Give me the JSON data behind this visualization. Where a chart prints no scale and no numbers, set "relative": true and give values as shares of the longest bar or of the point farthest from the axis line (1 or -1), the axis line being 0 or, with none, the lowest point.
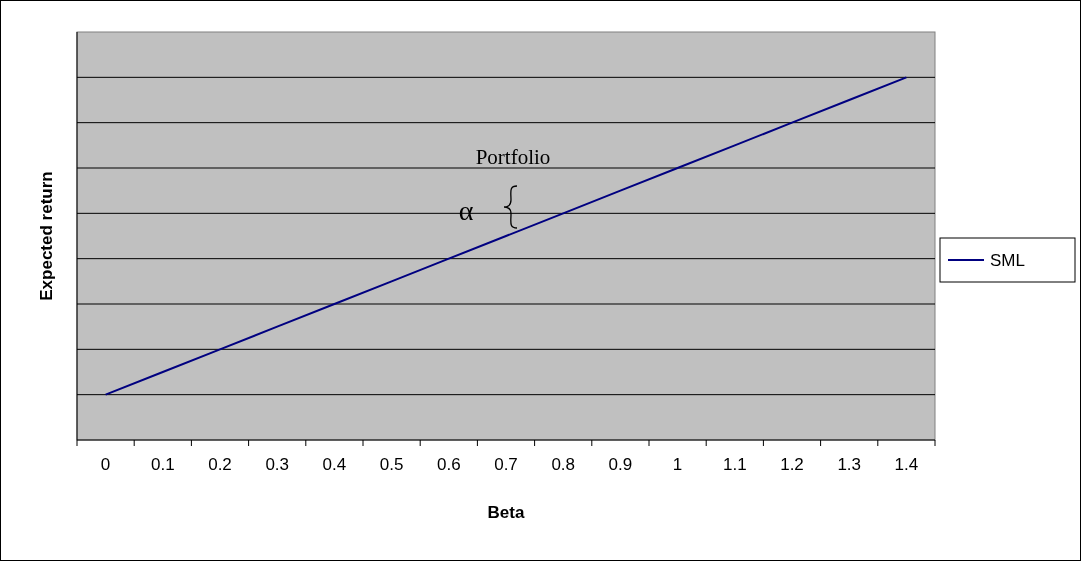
{
  "chart_data": {
    "type": "line",
    "relative": true,
    "xlabel": "Beta",
    "ylabel": "Expected return",
    "categories": [
      "0",
      "0.1",
      "0.2",
      "0.3",
      "0.4",
      "0.5",
      "0.6",
      "0.7",
      "0.8",
      "0.9",
      "1",
      "1.1",
      "1.2",
      "1.3",
      "1.4"
    ],
    "series": [
      {
        "name": "SML",
        "color": "#000080",
        "values": [
          0.125,
          0.1875,
          0.25,
          0.3125,
          0.375,
          0.4375,
          0.5,
          0.5625,
          0.625,
          0.6875,
          0.75,
          0.8125,
          0.875,
          0.9375,
          1
        ]
      }
    ],
    "annotations": [
      "Portfolio",
      "α"
    ],
    "grid": "y",
    "legend": "right"
  }
}
